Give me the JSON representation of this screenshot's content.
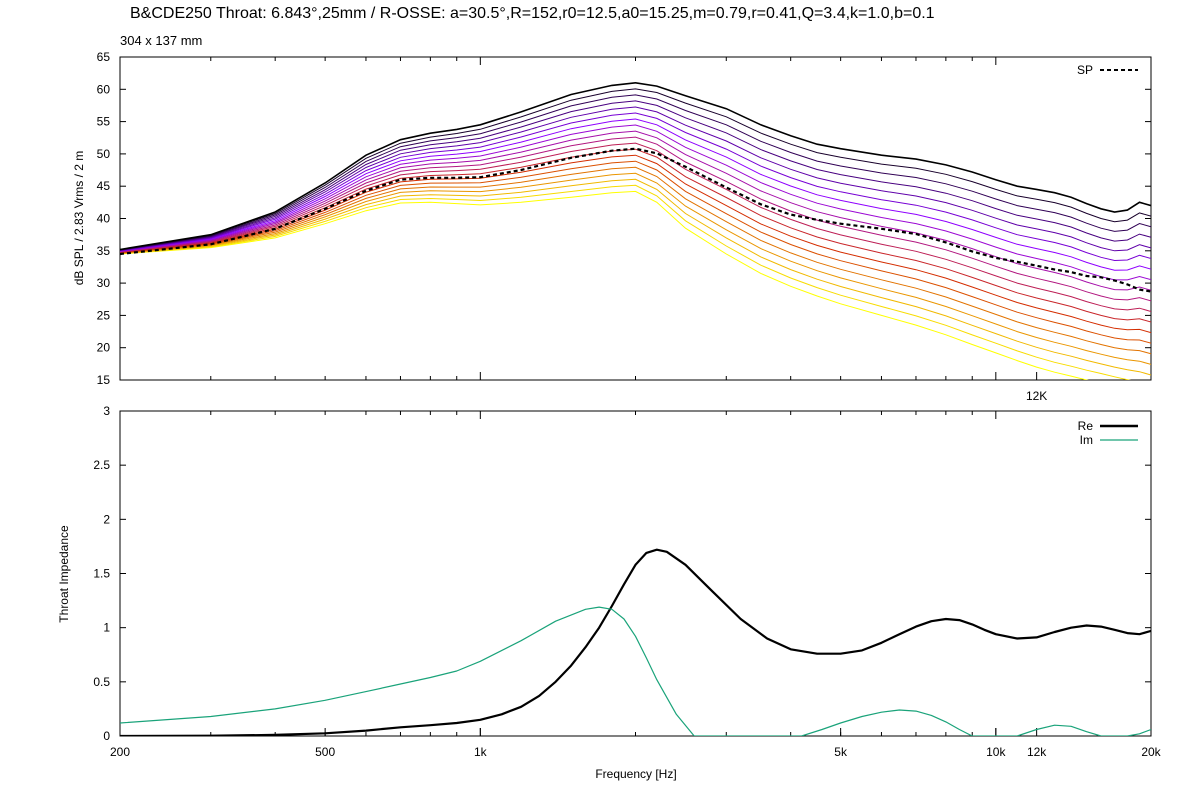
{
  "title": "B&CDE250 Throat: 6.843°,25mm / R-OSSE: a=30.5°,R=152,r0=12.5,a0=15.25,m=0.79,r=0.41,Q=3.4,k=1.0,b=0.1",
  "subtitle": "304 x 137 mm",
  "chart_data": [
    {
      "type": "line",
      "ylabel": "dB SPL / 2.83 Vrms / 2 m",
      "xscale": "log",
      "xlim": [
        200,
        20000
      ],
      "ylim": [
        15,
        65
      ],
      "yticks": [
        15,
        20,
        25,
        30,
        35,
        40,
        45,
        50,
        55,
        60,
        65
      ],
      "xticks": [
        {
          "value": 12000,
          "label": "12K"
        }
      ],
      "legend": {
        "position": "top-right",
        "entries": [
          "SP"
        ]
      },
      "polar_family": {
        "count": 19,
        "color_ramp": [
          "#000000",
          "#8f00ff",
          "#d42d00",
          "#ffff00"
        ],
        "top_curve": {
          "x": [
            200,
            300,
            400,
            500,
            600,
            700,
            800,
            900,
            1000,
            1200,
            1500,
            1800,
            2000,
            2200,
            2500,
            3000,
            3500,
            4000,
            4500,
            5000,
            6000,
            7000,
            8000,
            9000,
            10000,
            11000,
            12000,
            13000,
            14000,
            15000,
            16000,
            17000,
            18000,
            19000,
            20000
          ],
          "y": [
            35.2,
            37.5,
            41,
            45.5,
            49.8,
            52.2,
            53.2,
            53.8,
            54.5,
            56.5,
            59.2,
            60.6,
            61,
            60.5,
            59,
            57,
            54.5,
            52.8,
            51.5,
            50.8,
            49.8,
            49.2,
            48.3,
            47.2,
            46,
            45,
            44.5,
            44,
            43.3,
            42.3,
            41.5,
            41,
            41.3,
            42.5,
            42
          ]
        },
        "bottom_curve": {
          "x": [
            200,
            300,
            400,
            500,
            600,
            700,
            800,
            900,
            1000,
            1200,
            1500,
            1800,
            2000,
            2200,
            2500,
            3000,
            3500,
            4000,
            4500,
            5000,
            6000,
            7000,
            8000,
            9000,
            10000,
            11000,
            12000,
            13000,
            14000,
            15000,
            16000,
            17000,
            18000,
            19000,
            20000
          ],
          "y": [
            34.5,
            35.5,
            37,
            39.2,
            41.2,
            42.4,
            42.5,
            42.3,
            42.1,
            42.5,
            43.3,
            44,
            44.2,
            42.5,
            38.5,
            34.5,
            31.5,
            29.5,
            28,
            26.8,
            25,
            23.5,
            22,
            20.5,
            19.2,
            18,
            17,
            16.2,
            15.6,
            15,
            14.5,
            14,
            13.5,
            13,
            12.5
          ]
        }
      },
      "series": [
        {
          "name": "SP",
          "style": "dashed",
          "color": "#000000",
          "x": [
            200,
            300,
            400,
            500,
            600,
            700,
            800,
            900,
            1000,
            1200,
            1500,
            1800,
            2000,
            2200,
            2500,
            3000,
            3500,
            4000,
            4500,
            5000,
            6000,
            7000,
            8000,
            9000,
            10000,
            11000,
            12000,
            13000,
            14000,
            15000,
            16000,
            17000,
            18000,
            19000,
            20000
          ],
          "y": [
            34.5,
            36,
            38.4,
            41.5,
            44.3,
            46,
            46.3,
            46.3,
            46.4,
            47.5,
            49.4,
            50.5,
            50.8,
            50.1,
            48,
            44.8,
            42.2,
            40.6,
            39.8,
            39.2,
            38.4,
            37.6,
            36.3,
            34.9,
            33.9,
            33.3,
            32.7,
            32.1,
            31.7,
            31.1,
            30.9,
            30.4,
            29.8,
            29,
            28.7
          ]
        }
      ]
    },
    {
      "type": "line",
      "xlabel": "Frequency [Hz]",
      "ylabel": "Throat Impedance",
      "xscale": "log",
      "xlim": [
        200,
        20000
      ],
      "ylim": [
        0,
        3
      ],
      "yticks": [
        {
          "value": 0,
          "label": "0"
        },
        {
          "value": 0.5,
          "label": "0.5"
        },
        {
          "value": 1,
          "label": "1"
        },
        {
          "value": 1.5,
          "label": "1.5"
        },
        {
          "value": 2,
          "label": "2"
        },
        {
          "value": 2.5,
          "label": "2.5"
        },
        {
          "value": 3,
          "label": "3"
        }
      ],
      "xticks": [
        {
          "value": 200,
          "label": "200"
        },
        {
          "value": 500,
          "label": "500"
        },
        {
          "value": 1000,
          "label": "1k"
        },
        {
          "value": 5000,
          "label": "5k"
        },
        {
          "value": 10000,
          "label": "10k"
        },
        {
          "value": 12000,
          "label": "12k"
        },
        {
          "value": 20000,
          "label": "20k"
        }
      ],
      "legend": {
        "position": "top-right",
        "entries": [
          "Re",
          "Im"
        ]
      },
      "series": [
        {
          "name": "Re",
          "color": "#000000",
          "x": [
            200,
            300,
            400,
            500,
            600,
            700,
            800,
            900,
            1000,
            1100,
            1200,
            1300,
            1400,
            1500,
            1600,
            1700,
            1800,
            1900,
            2000,
            2100,
            2200,
            2300,
            2500,
            2800,
            3200,
            3600,
            4000,
            4500,
            5000,
            5500,
            6000,
            6500,
            7000,
            7500,
            8000,
            8500,
            9000,
            9500,
            10000,
            11000,
            12000,
            13000,
            14000,
            15000,
            16000,
            17000,
            18000,
            19000,
            20000
          ],
          "y": [
            0,
            0.003,
            0.01,
            0.025,
            0.05,
            0.08,
            0.1,
            0.12,
            0.15,
            0.2,
            0.27,
            0.37,
            0.5,
            0.65,
            0.82,
            1.0,
            1.2,
            1.4,
            1.58,
            1.69,
            1.72,
            1.7,
            1.58,
            1.35,
            1.08,
            0.9,
            0.8,
            0.76,
            0.76,
            0.79,
            0.86,
            0.94,
            1.01,
            1.06,
            1.08,
            1.07,
            1.03,
            0.98,
            0.94,
            0.9,
            0.91,
            0.96,
            1.0,
            1.02,
            1.01,
            0.98,
            0.95,
            0.94,
            0.97
          ]
        },
        {
          "name": "Im",
          "color": "#1aa37a",
          "x": [
            200,
            300,
            400,
            500,
            600,
            700,
            800,
            900,
            1000,
            1200,
            1400,
            1600,
            1700,
            1800,
            1900,
            2000,
            2100,
            2200,
            2400,
            2600,
            4200,
            4600,
            5000,
            5500,
            6000,
            6500,
            7000,
            7500,
            8000,
            8500,
            9000,
            9500,
            10000,
            11000,
            12000,
            13000,
            14000,
            15000,
            16000,
            17000,
            18000,
            19000,
            20000
          ],
          "y": [
            0.12,
            0.18,
            0.25,
            0.33,
            0.41,
            0.48,
            0.54,
            0.6,
            0.69,
            0.88,
            1.06,
            1.17,
            1.19,
            1.17,
            1.08,
            0.92,
            0.72,
            0.52,
            0.2,
            0,
            0,
            0.06,
            0.12,
            0.18,
            0.22,
            0.24,
            0.23,
            0.19,
            0.13,
            0.06,
            0,
            0,
            0,
            0,
            0.06,
            0.1,
            0.09,
            0.04,
            0,
            0,
            0,
            0.02,
            0.06
          ]
        }
      ]
    }
  ]
}
